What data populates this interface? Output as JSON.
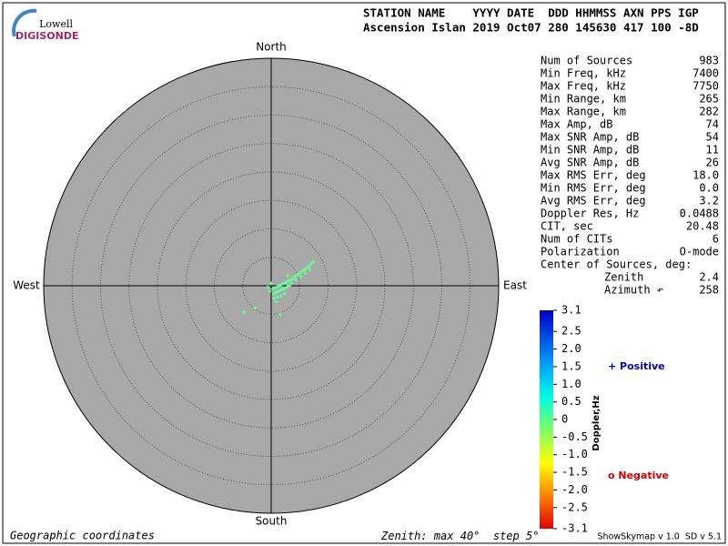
{
  "logo": {
    "top": "Lowell",
    "bottom": "DIGISONDE"
  },
  "header": {
    "line1": "STATION NAME    YYYY DATE  DDD HHMMSS AXN PPS IGP",
    "line2": "Ascension Islan 2019 Oct07 280 145630 417 100 -8D"
  },
  "plot": {
    "north": "North",
    "south": "South",
    "west": "West",
    "east": "East",
    "zenith_max": 40,
    "zenith_step": 5,
    "background": "#a8a8a8",
    "points": {
      "color": "#66ff99",
      "east": [
        0.2,
        0.6,
        1.0,
        1.4,
        1.8,
        2.2,
        2.6,
        3.0,
        3.4,
        3.8,
        0.4,
        0.8,
        1.2,
        1.6,
        2.0,
        2.4,
        2.8,
        3.2,
        0.0,
        -0.3,
        0.5,
        1.1,
        1.7,
        2.3,
        4.2,
        4.6,
        5.0,
        5.4,
        5.8,
        6.2,
        6.6,
        7.0,
        7.4,
        4.4,
        5.2,
        6.0,
        6.8,
        -4.8,
        -2.8,
        1.6,
        0.9,
        -0.6,
        3.6,
        2.9
      ],
      "north": [
        -0.6,
        -0.4,
        -0.2,
        0.0,
        0.2,
        0.4,
        0.6,
        0.8,
        1.0,
        1.2,
        -1.4,
        -1.2,
        -1.0,
        -0.8,
        -0.6,
        -0.4,
        -0.2,
        0.0,
        0.4,
        -1.0,
        -2.2,
        -2.0,
        -1.8,
        -1.4,
        1.6,
        1.9,
        2.2,
        2.5,
        2.8,
        3.1,
        3.4,
        3.8,
        4.2,
        1.0,
        1.6,
        2.2,
        2.8,
        -4.6,
        -3.9,
        -5.0,
        -2.8,
        -0.2,
        0.4,
        1.8
      ]
    }
  },
  "stats": [
    [
      "Num of Sources",
      "983"
    ],
    [
      "Min Freq, kHz",
      "7400"
    ],
    [
      "Max Freq, kHz",
      "7750"
    ],
    [
      "Min Range, km",
      "265"
    ],
    [
      "Max Range, km",
      "282"
    ],
    [
      "Max Amp, dB",
      "74"
    ],
    [
      "Max SNR Amp, dB",
      "54"
    ],
    [
      "Min SNR Amp, dB",
      "11"
    ],
    [
      "Avg SNR Amp, dB",
      "26"
    ],
    [
      "Max RMS Err, deg",
      "18.0"
    ],
    [
      "Min RMS Err, deg",
      "0.0"
    ],
    [
      "Avg RMS Err, deg",
      "3.2"
    ],
    [
      "Doppler Res, Hz",
      "0.0488"
    ],
    [
      "CIT, sec",
      "20.48"
    ],
    [
      "Num of CITs",
      "6"
    ],
    [
      "Polarization",
      "O-mode"
    ]
  ],
  "center": {
    "title": "Center of Sources, deg:",
    "rows": [
      [
        "Zenith",
        "2.4"
      ],
      [
        "Azimuth ↶",
        "258"
      ]
    ]
  },
  "colorbar": {
    "label": "Doppler,Hz",
    "lim": [
      -3.1,
      3.1
    ],
    "ticks": [
      3.1,
      2.5,
      {
        "value": 2.0,
        "label": "2.0"
      },
      1.5,
      {
        "value": 1.0,
        "label": "1.0"
      },
      0.5,
      0,
      -0.5,
      {
        "value": -1.0,
        "label": "-1.0"
      },
      -1.5,
      {
        "value": -2.0,
        "label": "-2.0"
      },
      -2.5,
      -3.1
    ]
  },
  "legend": {
    "positive": "+ Positive",
    "negative": "o Negative"
  },
  "footer": {
    "left": "Geographic coordinates",
    "zenith": {
      "prefix": "Zenith: max",
      "max": "40°",
      "step": "step 5°"
    },
    "right": "ShowSkymap v 1.0  SD v 5.1"
  }
}
